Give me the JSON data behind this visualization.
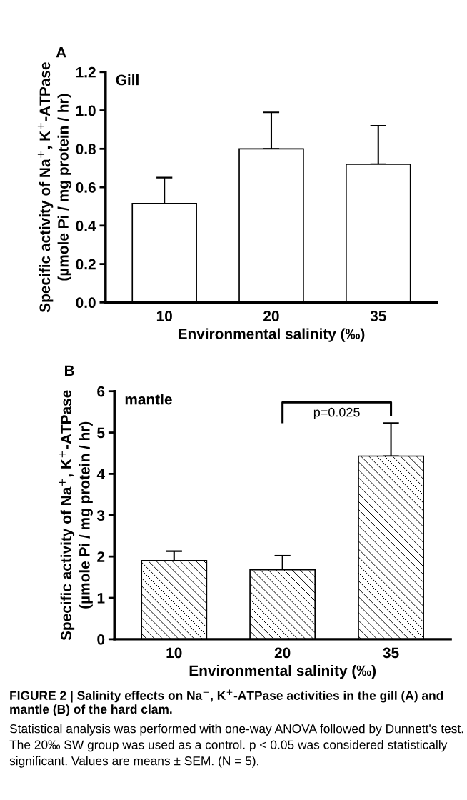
{
  "chart_data": [
    {
      "type": "bar",
      "categories": [
        "10",
        "20",
        "35"
      ],
      "values": [
        0.515,
        0.8,
        0.72
      ],
      "errors": [
        0.135,
        0.19,
        0.2
      ],
      "color": "#ffffff",
      "xlabel": "Environmental salinity (‰)",
      "ylabel": "Specific activity of Na$^{+}$, K$^{+}$-ATPase\n(µmole Pi / mg protein / hr)",
      "ylim": [
        0,
        1.2
      ],
      "yticks": [
        {
          "value": 0,
          "label": "0.0"
        },
        0.2,
        0.4,
        0.6,
        0.8,
        {
          "value": 1,
          "label": "1.0"
        },
        1.2
      ],
      "grid": false,
      "legend": false,
      "annotations": [
        "A",
        "Gill"
      ]
    },
    {
      "type": "bar",
      "categories": [
        "10",
        "20",
        "35"
      ],
      "values": [
        1.9,
        1.68,
        4.43
      ],
      "errors": [
        0.23,
        0.34,
        0.8
      ],
      "color": "#000000",
      "xlabel": "Environmental salinity (‰)",
      "ylabel": "Specific activity of Na$^{+}$, K$^{+}$-ATPase\n(µmole Pi / mg protein / hr)",
      "ylim": [
        0,
        6
      ],
      "yticks": [
        0,
        1,
        2,
        3,
        4,
        5,
        6
      ],
      "grid": false,
      "legend": false,
      "annotations": [
        "B",
        "mantle",
        "p=0.025",
        "FIGURE 2 | Salinity effects on Na$^{+}$, K$^{+}$-ATPase activities in the gill (A) and mantle (B) of the hard clam.",
        "Statistical analysis was performed with one-way ANOVA followed by Dunnett's test. The 20‰ SW group was used as a control. p < 0.05 was considered statistically significant. Values are means ± SEM. (N = 5)."
      ]
    }
  ]
}
